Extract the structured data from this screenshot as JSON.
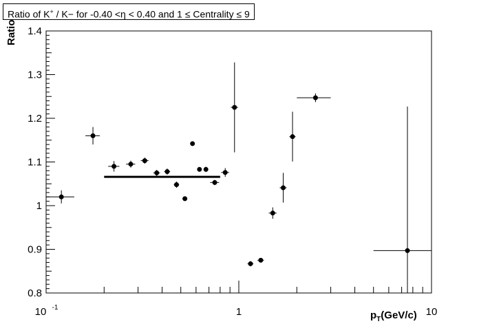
{
  "chart_data": {
    "type": "scatter",
    "title_parts": [
      "Ratio of K",
      "+",
      " / K",
      "−",
      " for  -0.40 <",
      "η",
      " <  0.40 and 1 ≤ Centrality ≤ 9"
    ],
    "ylabel": "Ratio",
    "xlabel_main": "p",
    "xlabel_sub": "T",
    "xlabel_unit": "(GeV/c)",
    "x_scale": "log",
    "xlim": [
      0.1,
      10
    ],
    "ylim": [
      0.8,
      1.4
    ],
    "y_ticks": [
      "0.8",
      "0.9",
      "1",
      "1.1",
      "1.2",
      "1.3",
      "1.4"
    ],
    "x_tick_labels": [
      "10",
      "-1",
      "1",
      "10"
    ],
    "grid": false,
    "legend": null,
    "fit_line": {
      "x": [
        0.2,
        0.8
      ],
      "y": 1.066
    },
    "points": [
      {
        "x": 0.12,
        "xlo": 0.1,
        "xhi": 0.14,
        "y": 1.02,
        "ey": 0.015
      },
      {
        "x": 0.175,
        "xlo": 0.16,
        "xhi": 0.19,
        "y": 1.16,
        "ey": 0.02
      },
      {
        "x": 0.225,
        "xlo": 0.21,
        "xhi": 0.24,
        "y": 1.09,
        "ey": 0.012
      },
      {
        "x": 0.275,
        "xlo": 0.26,
        "xhi": 0.29,
        "y": 1.095,
        "ey": 0.008
      },
      {
        "x": 0.325,
        "xlo": 0.31,
        "xhi": 0.34,
        "y": 1.103,
        "ey": 0.007
      },
      {
        "x": 0.375,
        "xlo": 0.36,
        "xhi": 0.39,
        "y": 1.075,
        "ey": 0.007
      },
      {
        "x": 0.425,
        "xlo": 0.41,
        "xhi": 0.44,
        "y": 1.078,
        "ey": 0.007
      },
      {
        "x": 0.475,
        "xlo": 0.46,
        "xhi": 0.49,
        "y": 1.048,
        "ey": 0.007
      },
      {
        "x": 0.525,
        "xlo": 0.51,
        "xhi": 0.54,
        "y": 1.016,
        "ey": 0.005
      },
      {
        "x": 0.575,
        "xlo": 0.56,
        "xhi": 0.59,
        "y": 1.142,
        "ey": 0.005
      },
      {
        "x": 0.625,
        "xlo": 0.61,
        "xhi": 0.64,
        "y": 1.083,
        "ey": 0.005
      },
      {
        "x": 0.675,
        "xlo": 0.66,
        "xhi": 0.69,
        "y": 1.083,
        "ey": 0.006
      },
      {
        "x": 0.75,
        "xlo": 0.71,
        "xhi": 0.79,
        "y": 1.053,
        "ey": 0.006
      },
      {
        "x": 0.85,
        "xlo": 0.81,
        "xhi": 0.89,
        "y": 1.076,
        "ey": 0.01
      },
      {
        "x": 0.95,
        "xlo": 0.91,
        "xhi": 0.99,
        "y": 1.225,
        "ey": 0.103
      },
      {
        "x": 1.15,
        "xlo": 1.11,
        "xhi": 1.19,
        "y": 0.867,
        "ey": 0.006
      },
      {
        "x": 1.3,
        "xlo": 1.25,
        "xhi": 1.35,
        "y": 0.875,
        "ey": 0.003
      },
      {
        "x": 1.5,
        "xlo": 1.43,
        "xhi": 1.57,
        "y": 0.983,
        "ey": 0.013
      },
      {
        "x": 1.7,
        "xlo": 1.63,
        "xhi": 1.77,
        "y": 1.041,
        "ey": 0.034
      },
      {
        "x": 1.9,
        "xlo": 1.83,
        "xhi": 1.97,
        "y": 1.158,
        "ey": 0.057
      },
      {
        "x": 2.5,
        "xlo": 2.0,
        "xhi": 3.0,
        "y": 1.247,
        "ey": 0.01
      },
      {
        "x": 7.5,
        "xlo": 5.0,
        "xhi": 10.0,
        "y": 0.897,
        "ey": 0.33
      }
    ]
  }
}
